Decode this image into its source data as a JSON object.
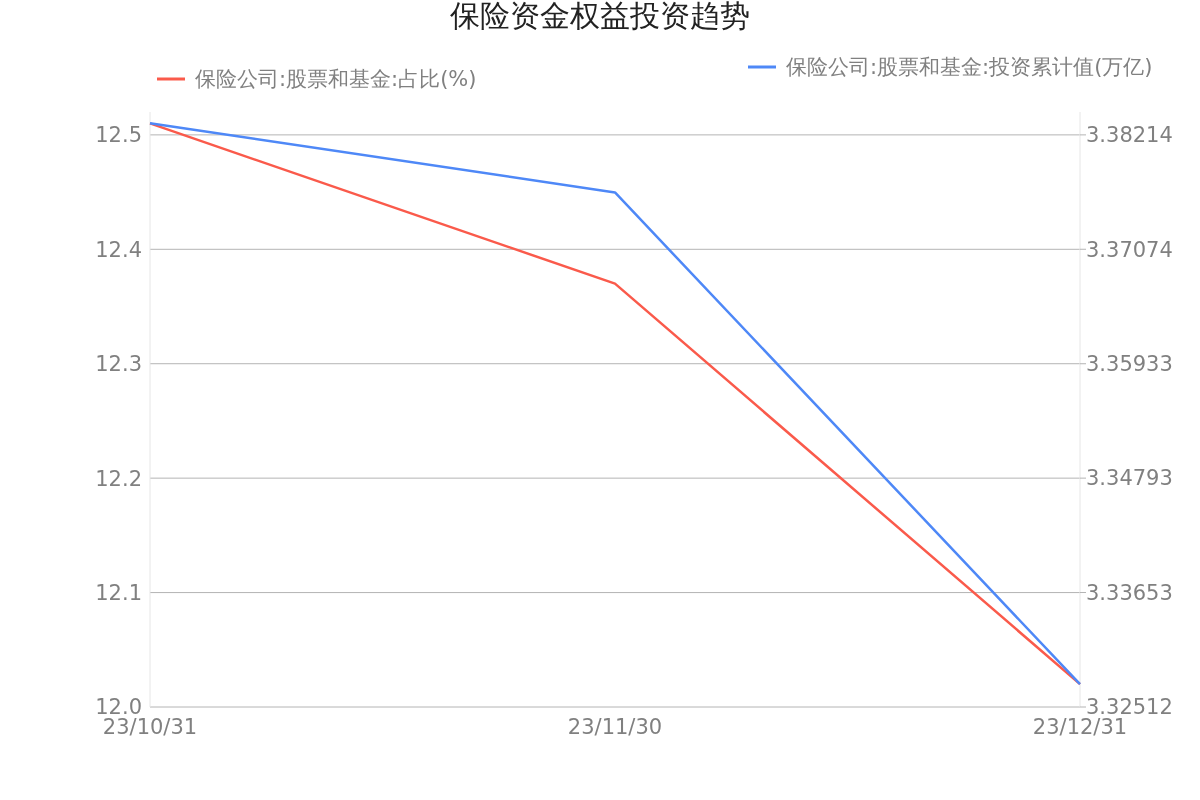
{
  "chart_data": {
    "type": "line",
    "title": "保险资金权益投资趋势",
    "categories": [
      "23/10/31",
      "23/11/30",
      "23/12/31"
    ],
    "series": [
      {
        "name": "保险公司:股票和基金:占比(%)",
        "color": "#fa5a4b",
        "values": [
          12.51,
          12.37,
          12.02
        ]
      },
      {
        "name": "保险公司:股票和基金:投资累计值(万亿)",
        "color": "#4e88f7",
        "values": [
          3.3833,
          3.3764,
          3.3274
        ],
        "axis": "y2"
      }
    ],
    "ylim": [
      12.0,
      12.52
    ],
    "yticks": [
      {
        "value": 12.0,
        "label": "12.0"
      },
      12.1,
      12.2,
      12.3,
      12.4,
      12.5
    ],
    "y2lim": [
      3.32512,
      3.38442
    ],
    "y2ticks": [
      3.32512,
      3.33653,
      3.34793,
      3.35933,
      3.37074,
      3.38214
    ],
    "grid": "y",
    "legend": "top",
    "marker": "none",
    "line_style": "solid"
  }
}
